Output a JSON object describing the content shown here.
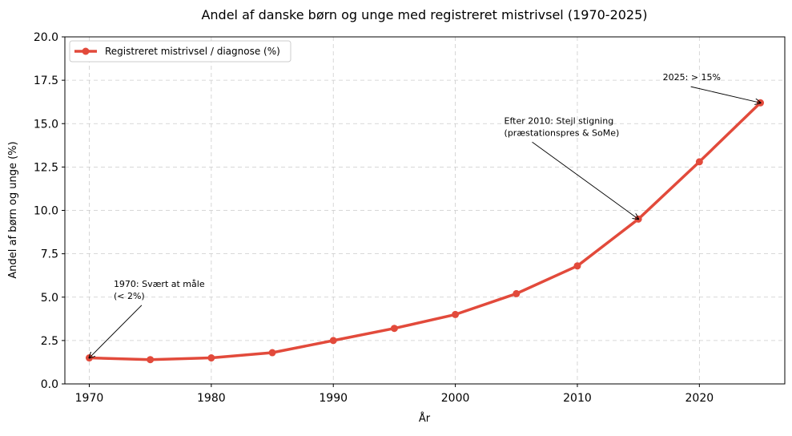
{
  "chart_data": {
    "type": "line",
    "title": "Andel af danske børn og unge med registreret mistrivsel (1970-2025)",
    "xlabel": "År",
    "ylabel": "Andel af børn og unge (%)",
    "xlim": [
      1968,
      2027
    ],
    "ylim": [
      0,
      20
    ],
    "x_ticks": [
      "1970",
      "1980",
      "1990",
      "2000",
      "2010",
      "2020"
    ],
    "y_ticks": [
      "0.0",
      "2.5",
      "5.0",
      "7.5",
      "10.0",
      "12.5",
      "15.0",
      "17.5",
      "20.0"
    ],
    "grid": true,
    "legend_position": "top-left",
    "x": [
      1970,
      1975,
      1980,
      1985,
      1990,
      1995,
      2000,
      2005,
      2010,
      2015,
      2020,
      2025
    ],
    "series": [
      {
        "name": "Registreret mistrivsel / diagnose (%)",
        "color": "#e24a3b",
        "values": [
          1.5,
          1.4,
          1.5,
          1.8,
          2.5,
          3.2,
          4.0,
          5.2,
          6.8,
          9.5,
          12.8,
          16.2
        ]
      }
    ],
    "annotations": [
      {
        "lines": [
          "1970: Svært at måle",
          "(< 2%)"
        ],
        "point": [
          1970,
          1.5
        ],
        "text_at": [
          1972,
          5.6
        ]
      },
      {
        "lines": [
          "Efter 2010: Stejl stigning",
          "(præstationspres & SoMe)"
        ],
        "point": [
          2015,
          9.5
        ],
        "text_at": [
          2004,
          15.0
        ]
      },
      {
        "lines": [
          "2025: > 15%"
        ],
        "point": [
          2025,
          16.2
        ],
        "text_at": [
          2017,
          17.5
        ]
      }
    ]
  }
}
